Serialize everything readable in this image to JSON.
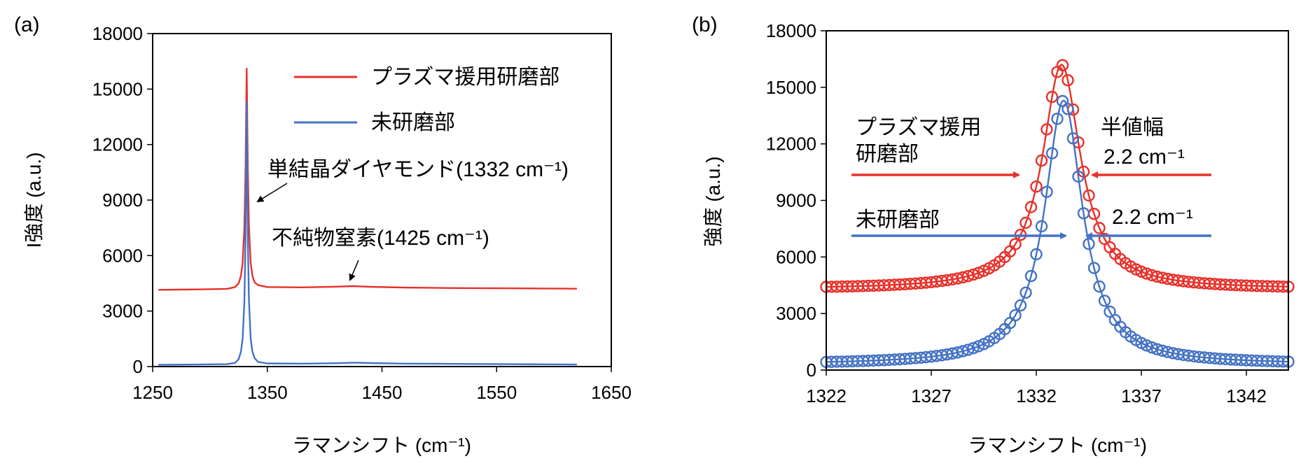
{
  "chart_data": [
    {
      "panel_label": "(a)",
      "type": "line",
      "xlabel": "ラマンシフト (cm⁻¹)",
      "ylabel": "I強度 (a.u.)",
      "xlim": [
        1250,
        1650
      ],
      "ylim": [
        0,
        18000
      ],
      "xticks": [
        "1250",
        "1350",
        "1450",
        "1550",
        "1650"
      ],
      "yticks": [
        "0",
        "3000",
        "6000",
        "9000",
        "12000",
        "15000",
        "18000"
      ],
      "grid": false,
      "legend_position": "top-right",
      "series": [
        {
          "name": "プラズマ援用研磨部",
          "color": "#e8302a",
          "x": [
            1255,
            1290,
            1315,
            1322,
            1325,
            1327,
            1328.5,
            1330,
            1331,
            1332,
            1333,
            1334,
            1335.5,
            1337,
            1339,
            1342,
            1350,
            1380,
            1410,
            1425,
            1440,
            1470,
            1500,
            1530,
            1560,
            1590,
            1620
          ],
          "y": [
            4150,
            4170,
            4200,
            4300,
            4500,
            4900,
            5600,
            7500,
            10500,
            16100,
            10800,
            7600,
            5600,
            4900,
            4550,
            4400,
            4300,
            4280,
            4320,
            4350,
            4310,
            4270,
            4250,
            4240,
            4230,
            4220,
            4210
          ]
        },
        {
          "name": "未研磨部",
          "color": "#4472c4",
          "x": [
            1255,
            1290,
            1315,
            1322,
            1325,
            1327,
            1328.5,
            1330,
            1331,
            1332,
            1333,
            1334,
            1335.5,
            1337,
            1339,
            1342,
            1350,
            1380,
            1410,
            1425,
            1440,
            1470,
            1500,
            1530,
            1560,
            1590,
            1620
          ],
          "y": [
            100,
            110,
            130,
            200,
            400,
            800,
            1500,
            3500,
            6800,
            14300,
            7000,
            3600,
            1500,
            800,
            450,
            250,
            170,
            160,
            180,
            210,
            190,
            160,
            150,
            140,
            130,
            120,
            110
          ]
        }
      ],
      "annotations": [
        {
          "text": "単結晶ダイヤモンド(1332 cm⁻¹)",
          "points_to": [
            1332,
            8500
          ]
        },
        {
          "text": "不純物窒素(1425 cm⁻¹)",
          "points_to": [
            1425,
            4300
          ]
        }
      ]
    },
    {
      "panel_label": "(b)",
      "type": "scatter+line",
      "xlabel": "ラマンシフト (cm⁻¹)",
      "ylabel": "強度 (a.u.)",
      "xlim": [
        1322,
        1344
      ],
      "ylim": [
        0,
        18000
      ],
      "xticks": [
        "1322",
        "1327",
        "1332",
        "1337",
        "1342"
      ],
      "yticks": [
        "0",
        "3000",
        "6000",
        "9000",
        "12000",
        "15000",
        "18000"
      ],
      "grid": false,
      "series": [
        {
          "name": "プラズマ援用研磨部",
          "color": "#e8302a",
          "baseline": 4300,
          "peak_height": 11900,
          "center": 1333.2,
          "fwhm": 2.2
        },
        {
          "name": "未研磨部",
          "color": "#4472c4",
          "baseline": 300,
          "peak_height": 14000,
          "center": 1333.3,
          "fwhm": 2.2
        }
      ],
      "annotations": [
        {
          "text": "プラズマ援用",
          "line2": "研磨部"
        },
        {
          "text": "未研磨部"
        },
        {
          "text": "半値幅"
        },
        {
          "text": "2.2 cm⁻¹"
        },
        {
          "text": "2.2 cm⁻¹"
        }
      ]
    }
  ]
}
